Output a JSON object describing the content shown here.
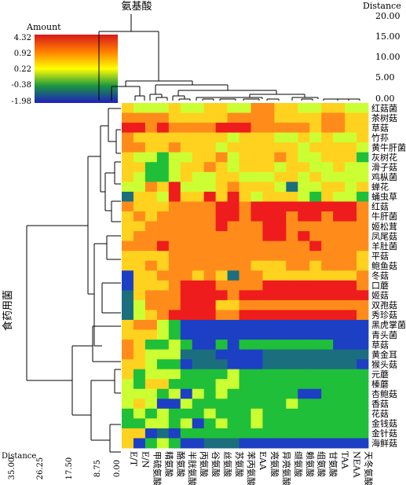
{
  "chart_data": {
    "type": "heatmap",
    "title": "",
    "top_axis_title": "氨基酸",
    "left_axis_title": "食药用菌",
    "legend": {
      "title": "Amount",
      "ticks": [
        "4.32",
        "0.92",
        "0.22",
        "-0.38",
        "-1.98"
      ],
      "colors": [
        "#d7191c",
        "#ff7f00",
        "#ffff00",
        "#1a9641",
        "#1f1fbf"
      ]
    },
    "top_distance_axis": {
      "label": "Distance",
      "ticks": [
        "20.00",
        "15.00",
        "10.00",
        "5.00",
        "0.00"
      ]
    },
    "bottom_distance_axis": {
      "label": "Distance",
      "ticks": [
        "35.00",
        "26.25",
        "17.50",
        "8.75",
        "0.00"
      ]
    },
    "columns": [
      "E/T",
      "E/N",
      "甲硫氨酸",
      "精氨酸",
      "酪氨酸",
      "半胱氨酸",
      "丙氨酸",
      "谷氨酸",
      "丝氨酸",
      "苏氨酸",
      "苯丙氨酸",
      "EAA",
      "亮氨酸",
      "异亮氨酸",
      "缬氨酸",
      "赖氨酸",
      "组氨酸",
      "甘氨酸",
      "TAA",
      "NEAA",
      "天冬氨酸"
    ],
    "rows": [
      "红菇菌",
      "茶树菇",
      "草菇",
      "竹荪",
      "黄牛肝菌",
      "灰树花",
      "滑子菇",
      "鸡枞菌",
      "蝉花",
      "蛹虫草",
      "红菇",
      "牛肝菌",
      "姬松茸",
      "凤尾菇",
      "羊肚菌",
      "平菇",
      "鲍鱼菇",
      "冬菇",
      "口蘑",
      "姬菇",
      "双孢菇",
      "秀珍菇",
      "黑虎掌菌",
      "青头菌",
      "草菇",
      "黄金耳",
      "猴头菇",
      "元蘑",
      "榛蘑",
      "杏鲍菇",
      "香菇",
      "花菇",
      "金钱菇",
      "金针菇",
      "海鲜菇"
    ],
    "values": [
      [
        2,
        1,
        1,
        1,
        2,
        1,
        1,
        2,
        2,
        1,
        1,
        3,
        3,
        2,
        2,
        1,
        1,
        2,
        2,
        1,
        1
      ],
      [
        3,
        3,
        3,
        3,
        2,
        2,
        2,
        2,
        2,
        3,
        3,
        3,
        3,
        2,
        2,
        2,
        2,
        3,
        3,
        2,
        2
      ],
      [
        4,
        4,
        3,
        4,
        3,
        3,
        3,
        3,
        4,
        4,
        4,
        3,
        3,
        3,
        3,
        3,
        2,
        3,
        3,
        2,
        2
      ],
      [
        3,
        2,
        2,
        2,
        2,
        2,
        2,
        2,
        2,
        1,
        2,
        2,
        2,
        1,
        1,
        2,
        1,
        2,
        1,
        1,
        2
      ],
      [
        3,
        3,
        2,
        2,
        3,
        2,
        2,
        2,
        1,
        2,
        2,
        2,
        2,
        2,
        2,
        1,
        2,
        2,
        2,
        2,
        1
      ],
      [
        2,
        1,
        1,
        0,
        1,
        1,
        2,
        2,
        3,
        1,
        2,
        2,
        2,
        3,
        2,
        1,
        1,
        2,
        2,
        2,
        0
      ],
      [
        2,
        2,
        0,
        0,
        1,
        2,
        2,
        3,
        2,
        1,
        2,
        2,
        2,
        1,
        2,
        2,
        1,
        1,
        2,
        1,
        1
      ],
      [
        2,
        1,
        0,
        0,
        1,
        2,
        1,
        1,
        2,
        2,
        1,
        1,
        1,
        2,
        2,
        1,
        2,
        1,
        1,
        1,
        1
      ],
      [
        1,
        1,
        3,
        2,
        4,
        1,
        1,
        1,
        2,
        3,
        2,
        2,
        2,
        1,
        -2,
        1,
        1,
        2,
        2,
        1,
        2
      ],
      [
        -2,
        2,
        2,
        1,
        4,
        2,
        2,
        4,
        2,
        4,
        2,
        1,
        2,
        2,
        2,
        1,
        0,
        2,
        1,
        1,
        0
      ],
      [
        3,
        2,
        2,
        2,
        3,
        3,
        3,
        3,
        4,
        4,
        3,
        4,
        4,
        4,
        4,
        4,
        4,
        4,
        4,
        4,
        3
      ],
      [
        2,
        3,
        2,
        3,
        3,
        3,
        3,
        3,
        4,
        4,
        3,
        4,
        4,
        4,
        3,
        4,
        4,
        3,
        4,
        4,
        3
      ],
      [
        2,
        2,
        3,
        3,
        3,
        3,
        3,
        3,
        4,
        3,
        3,
        3,
        4,
        4,
        3,
        3,
        3,
        3,
        3,
        3,
        3
      ],
      [
        2,
        3,
        3,
        3,
        3,
        3,
        3,
        3,
        3,
        3,
        3,
        3,
        4,
        4,
        3,
        4,
        3,
        3,
        3,
        3,
        3
      ],
      [
        3,
        3,
        3,
        4,
        3,
        3,
        3,
        3,
        3,
        3,
        3,
        3,
        3,
        3,
        3,
        3,
        4,
        3,
        3,
        3,
        3
      ],
      [
        2,
        2,
        2,
        2,
        3,
        3,
        3,
        3,
        3,
        3,
        3,
        3,
        3,
        3,
        3,
        3,
        3,
        3,
        3,
        3,
        2
      ],
      [
        2,
        2,
        3,
        2,
        3,
        3,
        3,
        3,
        3,
        3,
        3,
        2,
        2,
        2,
        3,
        3,
        2,
        3,
        3,
        3,
        2
      ],
      [
        -1,
        2,
        2,
        3,
        3,
        3,
        2,
        3,
        2,
        -2,
        3,
        3,
        2,
        2,
        2,
        2,
        2,
        2,
        2,
        2,
        3
      ],
      [
        -1,
        2,
        2,
        2,
        3,
        4,
        4,
        4,
        3,
        3,
        3,
        3,
        4,
        4,
        4,
        4,
        4,
        4,
        4,
        4,
        3
      ],
      [
        -2,
        2,
        3,
        3,
        3,
        4,
        4,
        4,
        4,
        3,
        4,
        4,
        4,
        4,
        4,
        4,
        4,
        4,
        4,
        4,
        4
      ],
      [
        -2,
        1,
        3,
        3,
        3,
        4,
        4,
        4,
        2,
        2,
        3,
        3,
        3,
        3,
        3,
        3,
        3,
        3,
        3,
        3,
        3
      ],
      [
        -2,
        1,
        2,
        3,
        4,
        4,
        4,
        4,
        3,
        3,
        4,
        4,
        4,
        4,
        4,
        4,
        4,
        4,
        4,
        4,
        3
      ],
      [
        2,
        3,
        3,
        1,
        0,
        -1,
        -1,
        -1,
        -1,
        -1,
        -1,
        -1,
        -1,
        -1,
        -1,
        -1,
        -1,
        -1,
        -1,
        -1,
        -1
      ],
      [
        2,
        2,
        2,
        1,
        0,
        -1,
        -1,
        -1,
        -1,
        -1,
        -1,
        -1,
        -1,
        -1,
        -1,
        -1,
        -1,
        -1,
        -1,
        -1,
        -1
      ],
      [
        3,
        2,
        0,
        0,
        1,
        0,
        -1,
        -1,
        0,
        -1,
        0,
        0,
        0,
        0,
        0,
        0,
        0,
        0,
        -1,
        -1,
        -1
      ],
      [
        3,
        2,
        1,
        1,
        1,
        -2,
        -2,
        -2,
        -1,
        -1,
        -1,
        -1,
        -2,
        -2,
        -2,
        -2,
        -2,
        -2,
        -2,
        -2,
        -2
      ],
      [
        2,
        2,
        1,
        0,
        0,
        -1,
        -2,
        -2,
        -2,
        -1,
        -1,
        -1,
        -2,
        -2,
        -2,
        -2,
        -2,
        -2,
        -2,
        -2,
        -1
      ],
      [
        2,
        0,
        1,
        1,
        1,
        0,
        0,
        0,
        0,
        1,
        0,
        0,
        0,
        0,
        0,
        0,
        0,
        0,
        0,
        0,
        0
      ],
      [
        1,
        0,
        2,
        2,
        0,
        0,
        0,
        0,
        1,
        1,
        0,
        0,
        0,
        0,
        0,
        0,
        0,
        0,
        0,
        0,
        0
      ],
      [
        1,
        1,
        1,
        0,
        1,
        -1,
        1,
        0,
        1,
        0,
        0,
        0,
        0,
        0,
        0,
        -1,
        -1,
        0,
        0,
        0,
        0
      ],
      [
        1,
        2,
        1,
        -1,
        -1,
        1,
        0,
        0,
        0,
        0,
        0,
        0,
        0,
        0,
        1,
        0,
        0,
        0,
        0,
        0,
        0
      ],
      [
        0,
        1,
        0,
        1,
        0,
        0,
        0,
        1,
        0,
        0,
        0,
        1,
        0,
        0,
        0,
        0,
        0,
        0,
        0,
        0,
        0
      ],
      [
        0,
        0,
        1,
        1,
        0,
        1,
        -1,
        0,
        1,
        0,
        0,
        1,
        0,
        0,
        0,
        0,
        0,
        0,
        0,
        0,
        0
      ],
      [
        2,
        2,
        -1,
        -2,
        -1,
        0,
        0,
        0,
        0,
        0,
        0,
        0,
        0,
        0,
        0,
        0,
        0,
        0,
        0,
        0,
        0
      ],
      [
        2,
        -1,
        0,
        1,
        0,
        -1,
        -1,
        -2,
        -2,
        -2,
        -1,
        -1,
        -1,
        -1,
        -1,
        -1,
        -1,
        -1,
        -1,
        -1,
        -1
      ]
    ]
  }
}
